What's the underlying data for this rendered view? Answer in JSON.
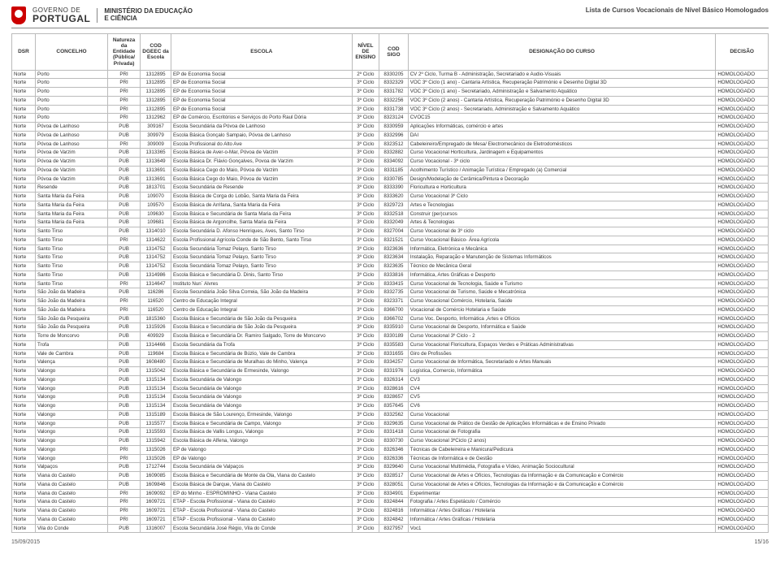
{
  "header": {
    "gov_line1": "GOVERNO DE",
    "gov_line2": "PORTUGAL",
    "ministry_line1": "MINISTÉRIO DA EDUCAÇÃO",
    "ministry_line2": "E CIÊNCIA",
    "doc_title": "Lista de Cursos Vocacionais de Nível Básico Homologados"
  },
  "columns": [
    {
      "key": "dsr",
      "label": "DSR"
    },
    {
      "key": "concelho",
      "label": "CONCELHO"
    },
    {
      "key": "natureza",
      "label": "Natureza da Entidade (Pública/ Privada)"
    },
    {
      "key": "cod_escola",
      "label": "COD DGEEC da Escola"
    },
    {
      "key": "escola",
      "label": "ESCOLA"
    },
    {
      "key": "nivel",
      "label": "NÍVEL DE ENSINO"
    },
    {
      "key": "sigo",
      "label": "COD SIGO"
    },
    {
      "key": "designacao",
      "label": "DESIGNAÇÃO DO CURSO"
    },
    {
      "key": "decisao",
      "label": "DECISÃO"
    }
  ],
  "rows": [
    [
      "Norte",
      "Porto",
      "PRI",
      "1312895",
      "EP de Economia Social",
      "2º Ciclo",
      "8330205",
      "CV 2º Ciclo, Turma B - Administração, Secretariado e Audio-Visuais",
      "HOMOLOGADO"
    ],
    [
      "Norte",
      "Porto",
      "PRI",
      "1312895",
      "EP de Economia Social",
      "3º Ciclo",
      "8332329",
      "VOC 3º Ciclo (1 ano) - Cantaria Artística, Recuperação Património e Desenho Digital 3D",
      "HOMOLOGADO"
    ],
    [
      "Norte",
      "Porto",
      "PRI",
      "1312895",
      "EP de Economia Social",
      "3º Ciclo",
      "8331782",
      "VOC 3º Ciclo (1 ano) - Secretariado, Administração e Salvamento Aquático",
      "HOMOLOGADO"
    ],
    [
      "Norte",
      "Porto",
      "PRI",
      "1312895",
      "EP de Economia Social",
      "3º Ciclo",
      "8332256",
      "VOC 3º Ciclo (2 anos) - Cantaria Artística, Recuperação Património e Desenho Digital 3D",
      "HOMOLOGADO"
    ],
    [
      "Norte",
      "Porto",
      "PRI",
      "1312895",
      "EP de Economia Social",
      "3º Ciclo",
      "8331738",
      "VOC 3º Ciclo (2 anos) - Secretariado, Administração e Salvamento Aquático",
      "HOMOLOGADO"
    ],
    [
      "Norte",
      "Porto",
      "PRI",
      "1312962",
      "EP de Comércio, Escritórios e Serviços do Porto Raul Dória",
      "3º Ciclo",
      "8323124",
      "CVOC15",
      "HOMOLOGADO"
    ],
    [
      "Norte",
      "Póvoa de Lanhoso",
      "PUB",
      "309167",
      "Escola Secundária da Póvoa de Lanhoso",
      "3º Ciclo",
      "8330959",
      "Aplicações Informáticas, comércio e artes",
      "HOMOLOGADO"
    ],
    [
      "Norte",
      "Póvoa de Lanhoso",
      "PUB",
      "309979",
      "Escola Básica Gonçalo Sampaio, Póvoa de Lanhoso",
      "3º Ciclo",
      "8332996",
      "DAI",
      "HOMOLOGADO"
    ],
    [
      "Norte",
      "Póvoa de Lanhoso",
      "PRI",
      "309009",
      "Escola Profissional do Alto Ave",
      "3º Ciclo",
      "8323512",
      "Cabeleireiro/Empregado de Mesa/ Electromecânico de Eletrodomésticos",
      "HOMOLOGADO"
    ],
    [
      "Norte",
      "Póvoa de Varzim",
      "PUB",
      "1313365",
      "Escola Básica de Aver-o-Mar, Póvoa de Varzim",
      "3º Ciclo",
      "8332882",
      "Curso Vocacional Horticultura, Jardinagem e Equipamentos",
      "HOMOLOGADO"
    ],
    [
      "Norte",
      "Póvoa de Varzim",
      "PUB",
      "1313649",
      "Escola Básica Dr. Flávio Gonçalves, Povoa de Varzim",
      "3º Ciclo",
      "8334092",
      "Curso Vocacional - 3º ciclo",
      "HOMOLOGADO"
    ],
    [
      "Norte",
      "Póvoa de Varzim",
      "PUB",
      "1313691",
      "Escola Básica Cego do Maio, Póvoa de Varzim",
      "3º Ciclo",
      "8331185",
      "Acolhimento Turístico / Animação Turística / Empregado (a) Comercial",
      "HOMOLOGADO"
    ],
    [
      "Norte",
      "Póvoa de Varzim",
      "PUB",
      "1313691",
      "Escola Básica Cego do Maio, Póvoa de Varzim",
      "3º Ciclo",
      "8330785",
      "Design/Modelação de Cerâmica/Pintura e Decoração",
      "HOMOLOGADO"
    ],
    [
      "Norte",
      "Resende",
      "PUB",
      "1813701",
      "Escola Secundária de Resende",
      "3º Ciclo",
      "8333390",
      "Floricultura e Horticultura",
      "HOMOLOGADO"
    ],
    [
      "Norte",
      "Santa Maria da Feira",
      "PUB",
      "109070",
      "Escola Básica de Corga do Lobão, Santa Maria da Feira",
      "3º Ciclo",
      "8333620",
      "Curso Vocacional 3º Ciclo",
      "HOMOLOGADO"
    ],
    [
      "Norte",
      "Santa Maria da Feira",
      "PUB",
      "109570",
      "Escola Básica de Arrifana, Santa Maria da Feira",
      "3º Ciclo",
      "8329723",
      "Artes e Tecnologias",
      "HOMOLOGADO"
    ],
    [
      "Norte",
      "Santa Maria da Feira",
      "PUB",
      "109630",
      "Escola Básica e Secundária de Santa Maria da Feira",
      "3º Ciclo",
      "8332518",
      "Construir (per)cursos",
      "HOMOLOGADO"
    ],
    [
      "Norte",
      "Santa Maria da Feira",
      "PUB",
      "109681",
      "Escola Básica de Argoncilhe, Santa Maria da Feira",
      "3º Ciclo",
      "8332049",
      "Artes & Tecnologias",
      "HOMOLOGADO"
    ],
    [
      "Norte",
      "Santo Tirso",
      "PUB",
      "1314010",
      "Escola Secundária D. Afonso Henriques, Aves, Santo Tirso",
      "3º Ciclo",
      "8327004",
      "Curso Vocacional de 3º ciclo",
      "HOMOLOGADO"
    ],
    [
      "Norte",
      "Santo Tirso",
      "PRI",
      "1314622",
      "Escola Profissional Agrícola Conde de São Bento, Santo Tirso",
      "3º Ciclo",
      "8321521",
      "Curso Vocacional Básico- Área Agrícola",
      "HOMOLOGADO"
    ],
    [
      "Norte",
      "Santo Tirso",
      "PUB",
      "1314752",
      "Escola Secundária Tomaz Pelayo, Santo Tirso",
      "3º Ciclo",
      "8323636",
      "Informática, Eletrónica e Mecânica",
      "HOMOLOGADO"
    ],
    [
      "Norte",
      "Santo Tirso",
      "PUB",
      "1314752",
      "Escola Secundária Tomaz Pelayo, Santo Tirso",
      "3º Ciclo",
      "8323634",
      "Instalação, Reparação e Manutenção de Sistemas Informáticos",
      "HOMOLOGADO"
    ],
    [
      "Norte",
      "Santo Tirso",
      "PUB",
      "1314752",
      "Escola Secundária Tomaz Pelayo, Santo Tirso",
      "3º Ciclo",
      "8323635",
      "Técnico de Mecânica Geral",
      "HOMOLOGADO"
    ],
    [
      "Norte",
      "Santo Tirso",
      "PUB",
      "1314986",
      "Escola Básica e Secundária D. Dinis, Santo Tirso",
      "3º Ciclo",
      "8333816",
      "Informática, Artes Gráficas e Desporto",
      "HOMOLOGADO"
    ],
    [
      "Norte",
      "Santo Tirso",
      "PRI",
      "1314647",
      "Instituto Nun´ Alvres",
      "3º Ciclo",
      "8333415",
      "Curso Vocacional de Tecnologia, Saúde e Turismo",
      "HOMOLOGADO"
    ],
    [
      "Norte",
      "São João da Madeira",
      "PUB",
      "116286",
      "Escola Secundária João Silva Correia, São João da Madeira",
      "3º Ciclo",
      "8332735",
      "Curso Vocacional de Turismo, Saúde e Mecatrónica",
      "HOMOLOGADO"
    ],
    [
      "Norte",
      "São João da Madeira",
      "PRI",
      "116520",
      "Centro de Educação Integral",
      "3º Ciclo",
      "8323371",
      "Curso Vocacional Comércio, Hotelaria, Saúde",
      "HOMOLOGADO"
    ],
    [
      "Norte",
      "São João da Madeira",
      "PRI",
      "116520",
      "Centro de Educação Integral",
      "3º Ciclo",
      "8366700",
      "Vocacional de Comércio Hotelaria e Saúde",
      "HOMOLOGADO"
    ],
    [
      "Norte",
      "São João da Pesqueira",
      "PUB",
      "1815360",
      "Escola Básica e Secundária de São João da Pesqueira",
      "3º Ciclo",
      "8366702",
      "Curso Voc. Desporto, Informática ,Artes e Ofícios",
      "HOMOLOGADO"
    ],
    [
      "Norte",
      "São João da Pesqueira",
      "PUB",
      "1315926",
      "Escola Básica e Secundária de São João da Pesqueira",
      "3º Ciclo",
      "8335910",
      "Curso Vocacional de  Desporto, Informática e Saúde",
      "HOMOLOGADO"
    ],
    [
      "Norte",
      "Torre de Moncorvo",
      "PUB",
      "409929",
      "Escola Básica e Secundária Dr. Ramiro Salgado, Torre de Moncorvo",
      "3º Ciclo",
      "8330189",
      "Curso Vocacional 3º Ciclo - 2",
      "HOMOLOGADO"
    ],
    [
      "Norte",
      "Trofa",
      "PUB",
      "1314466",
      "Escola Secundária da Trofa",
      "3º Ciclo",
      "8335583",
      "Curso Vocacional Floricultura, Espaços Verdes e Práticas Administrativas",
      "HOMOLOGADO"
    ],
    [
      "Norte",
      "Vale de Cambra",
      "PUB",
      "119684",
      "Escola Básica e Secundária de Búzio, Vale de Cambra",
      "3º Ciclo",
      "8331655",
      "Giro de Profissões",
      "HOMOLOGADO"
    ],
    [
      "Norte",
      "Valença",
      "PUB",
      "1608480",
      "Escola Básica e Secundária de Muralhas do Minho, Valença",
      "3º Ciclo",
      "8334257",
      "Curso Vocacional de Informática, Secretariado e Artes Manuais",
      "HOMOLOGADO"
    ],
    [
      "Norte",
      "Valongo",
      "PUB",
      "1315042",
      "Escola Básica e Secundária de Ermesinde, Valongo",
      "3º Ciclo",
      "8331976",
      "Logística, Comercio, Informática",
      "HOMOLOGADO"
    ],
    [
      "Norte",
      "Valongo",
      "PUB",
      "1315134",
      "Escola Secundária de Valongo",
      "3º Ciclo",
      "8326314",
      "CV3",
      "HOMOLOGADO"
    ],
    [
      "Norte",
      "Valongo",
      "PUB",
      "1315134",
      "Escola Secundária de Valongo",
      "3º Ciclo",
      "8328616",
      "CV4",
      "HOMOLOGADO"
    ],
    [
      "Norte",
      "Valongo",
      "PUB",
      "1315134",
      "Escola Secundária de Valongo",
      "3º Ciclo",
      "8328657",
      "CV5",
      "HOMOLOGADO"
    ],
    [
      "Norte",
      "Valongo",
      "PUB",
      "1315134",
      "Escola Secundária de Valongo",
      "3º Ciclo",
      "8357645",
      "CV6",
      "HOMOLOGADO"
    ],
    [
      "Norte",
      "Valongo",
      "PUB",
      "1315189",
      "Escola Básica de São Lourenço, Ermesinde, Valongo",
      "3º Ciclo",
      "8332562",
      "Curso Vocacional",
      "HOMOLOGADO"
    ],
    [
      "Norte",
      "Valongo",
      "PUB",
      "1315577",
      "Escola Básica e Secundária de Campo, Valongo",
      "3º Ciclo",
      "8329635",
      "Curso Vocacional de Prático de Gestão de Aplicações Informáticas e de Ensino Privado",
      "HOMOLOGADO"
    ],
    [
      "Norte",
      "Valongo",
      "PUB",
      "1315593",
      "Escola Básica de Vallis Longus, Valongo",
      "3º Ciclo",
      "8331418",
      "Curso Vocacional de Fotografia",
      "HOMOLOGADO"
    ],
    [
      "Norte",
      "Valongo",
      "PUB",
      "1315942",
      "Escola Básica de Alfena, Valongo",
      "3º Ciclo",
      "8330730",
      "Curso Vocacional 3ºCiclo (2 anos)",
      "HOMOLOGADO"
    ],
    [
      "Norte",
      "Valongo",
      "PRI",
      "1315026",
      "EP de Valongo",
      "3º Ciclo",
      "8326346",
      "Técnicas de Cabeleireira e Manicura/Pedicura",
      "HOMOLOGADO"
    ],
    [
      "Norte",
      "Valongo",
      "PRI",
      "1315026",
      "EP de Valongo",
      "3º Ciclo",
      "8326336",
      "Técnicas de Informática e de Gestão",
      "HOMOLOGADO"
    ],
    [
      "Norte",
      "Valpaços",
      "PUB",
      "1712744",
      "Escola Secundária de Valpaços",
      "3º Ciclo",
      "8329640",
      "Curso Vocacional Multimédia, Fotografia e Vídeo, Animação Sociocultural",
      "HOMOLOGADO"
    ],
    [
      "Norte",
      "Viana do Castelo",
      "PUB",
      "1609085",
      "Escola Básica e Secundária de Monte da Ola, Viana do Castelo",
      "3º Ciclo",
      "8328517",
      "Curso Vocacional de Artes e Ofícios, Tecnologias da Informação e da Comunicação e Comércio",
      "HOMOLOGADO"
    ],
    [
      "Norte",
      "Viana do Castelo",
      "PUB",
      "1609846",
      "Escola Básica de Darque, Viana do Castelo",
      "3º Ciclo",
      "8328051",
      "Curso Vocacional de Artes e Ofícios, Tecnologias da Informação e da Comunicação e Comércio",
      "HOMOLOGADO"
    ],
    [
      "Norte",
      "Viana do Castelo",
      "PRI",
      "1609092",
      "EP do Minho - ESPROMINHO - Viana Castelo",
      "3º Ciclo",
      "8334901",
      "Experimentar",
      "HOMOLOGADO"
    ],
    [
      "Norte",
      "Viana do Castelo",
      "PRI",
      "1609721",
      "ETAP - Escola Profissional - Viana do Castelo",
      "3º Ciclo",
      "8324844",
      "Fotografia / Artes Espetáculo / Comércio",
      "HOMOLOGADO"
    ],
    [
      "Norte",
      "Viana do Castelo",
      "PRI",
      "1609721",
      "ETAP - Escola Profissional - Viana do Castelo",
      "3º Ciclo",
      "8324816",
      "Informática / Artes Gráficas / Hotelaria",
      "HOMOLOGADO"
    ],
    [
      "Norte",
      "Viana do Castelo",
      "PRI",
      "1609721",
      "ETAP - Escola Profissional - Viana do Castelo",
      "3º Ciclo",
      "8324842",
      "Informática / Artes Gráficas / Hotelaria",
      "HOMOLOGADO"
    ],
    [
      "Norte",
      "Vila do Conde",
      "PUB",
      "1316007",
      "Escola Secundária José Régio, Vila do Conde",
      "3º Ciclo",
      "8327957",
      "Voc1",
      "HOMOLOGADO"
    ]
  ],
  "footer": {
    "date": "15/09/2015",
    "page": "15/16"
  }
}
